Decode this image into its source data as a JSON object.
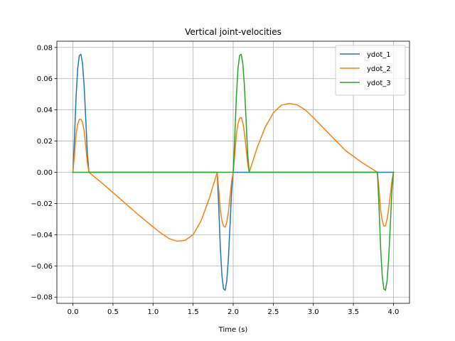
{
  "chart_data": {
    "type": "line",
    "title": "Vertical joint-velocities",
    "xlabel": "Time (s)",
    "ylabel": "",
    "xlim": [
      -0.2,
      4.2
    ],
    "ylim": [
      -0.084,
      0.084
    ],
    "xticks": [
      0.0,
      0.5,
      1.0,
      1.5,
      2.0,
      2.5,
      3.0,
      3.5,
      4.0
    ],
    "xtick_labels": [
      "0.0",
      "0.5",
      "1.0",
      "1.5",
      "2.0",
      "2.5",
      "3.0",
      "3.5",
      "4.0"
    ],
    "yticks": [
      0.08,
      0.06,
      0.04,
      0.02,
      0.0,
      -0.02,
      -0.04,
      -0.06,
      -0.08
    ],
    "ytick_labels": [
      "0.08",
      "0.06",
      "0.04",
      "0.02",
      "0.00",
      "−0.02",
      "−0.04",
      "−0.06",
      "−0.08"
    ],
    "grid": true,
    "legend_position": "top-right",
    "series": [
      {
        "name": "ydot_1",
        "color": "#1f77b4",
        "points": [
          [
            0.0,
            0.0
          ],
          [
            0.02,
            0.0226
          ],
          [
            0.04,
            0.0487
          ],
          [
            0.06,
            0.0665
          ],
          [
            0.08,
            0.0748
          ],
          [
            0.1,
            0.0756
          ],
          [
            0.12,
            0.0697
          ],
          [
            0.14,
            0.0555
          ],
          [
            0.16,
            0.0346
          ],
          [
            0.18,
            0.0124
          ],
          [
            0.2,
            0.0
          ],
          [
            1.8,
            0.0
          ],
          [
            1.82,
            -0.0226
          ],
          [
            1.84,
            -0.0487
          ],
          [
            1.86,
            -0.0665
          ],
          [
            1.88,
            -0.0748
          ],
          [
            1.9,
            -0.0756
          ],
          [
            1.92,
            -0.0697
          ],
          [
            1.94,
            -0.0555
          ],
          [
            1.96,
            -0.0346
          ],
          [
            1.98,
            -0.0124
          ],
          [
            2.0,
            0.0
          ],
          [
            4.0,
            0.0
          ]
        ]
      },
      {
        "name": "ydot_2",
        "color": "#ff7f0e",
        "points": [
          [
            0.0,
            0.0
          ],
          [
            0.02,
            0.0113
          ],
          [
            0.04,
            0.0244
          ],
          [
            0.06,
            0.031
          ],
          [
            0.08,
            0.0338
          ],
          [
            0.1,
            0.034
          ],
          [
            0.12,
            0.032
          ],
          [
            0.14,
            0.0265
          ],
          [
            0.16,
            0.017
          ],
          [
            0.18,
            0.006
          ],
          [
            0.2,
            0.0
          ],
          [
            0.4,
            -0.0085
          ],
          [
            0.6,
            -0.0175
          ],
          [
            0.8,
            -0.0265
          ],
          [
            1.0,
            -0.035
          ],
          [
            1.1,
            -0.039
          ],
          [
            1.2,
            -0.0425
          ],
          [
            1.3,
            -0.0442
          ],
          [
            1.4,
            -0.0436
          ],
          [
            1.5,
            -0.04
          ],
          [
            1.6,
            -0.031
          ],
          [
            1.7,
            -0.017
          ],
          [
            1.8,
            0.0
          ],
          [
            1.82,
            -0.0113
          ],
          [
            1.84,
            -0.0244
          ],
          [
            1.86,
            -0.031
          ],
          [
            1.88,
            -0.0345
          ],
          [
            1.9,
            -0.0352
          ],
          [
            1.92,
            -0.032
          ],
          [
            1.94,
            -0.0255
          ],
          [
            1.96,
            -0.016
          ],
          [
            1.98,
            -0.006
          ],
          [
            2.0,
            0.0
          ],
          [
            2.02,
            0.0113
          ],
          [
            2.04,
            0.0244
          ],
          [
            2.06,
            0.031
          ],
          [
            2.08,
            0.0345
          ],
          [
            2.1,
            0.0352
          ],
          [
            2.12,
            0.032
          ],
          [
            2.14,
            0.0255
          ],
          [
            2.16,
            0.016
          ],
          [
            2.18,
            0.006
          ],
          [
            2.2,
            0.0
          ],
          [
            2.3,
            0.016
          ],
          [
            2.4,
            0.029
          ],
          [
            2.5,
            0.038
          ],
          [
            2.6,
            0.043
          ],
          [
            2.7,
            0.0441
          ],
          [
            2.8,
            0.0432
          ],
          [
            2.9,
            0.04
          ],
          [
            3.0,
            0.035
          ],
          [
            3.2,
            0.0245
          ],
          [
            3.4,
            0.014
          ],
          [
            3.6,
            0.0065
          ],
          [
            3.8,
            0.0
          ],
          [
            3.82,
            -0.0113
          ],
          [
            3.84,
            -0.0244
          ],
          [
            3.86,
            -0.031
          ],
          [
            3.88,
            -0.0345
          ],
          [
            3.9,
            -0.0342
          ],
          [
            3.92,
            -0.03
          ],
          [
            3.94,
            -0.0235
          ],
          [
            3.96,
            -0.015
          ],
          [
            3.98,
            -0.0055
          ],
          [
            4.0,
            0.0
          ]
        ]
      },
      {
        "name": "ydot_3",
        "color": "#2ca02c",
        "points": [
          [
            0.0,
            0.0
          ],
          [
            2.0,
            0.0
          ],
          [
            2.02,
            0.0226
          ],
          [
            2.04,
            0.0487
          ],
          [
            2.06,
            0.0665
          ],
          [
            2.08,
            0.0748
          ],
          [
            2.1,
            0.0756
          ],
          [
            2.12,
            0.0697
          ],
          [
            2.14,
            0.0555
          ],
          [
            2.16,
            0.0346
          ],
          [
            2.18,
            0.0124
          ],
          [
            2.2,
            0.0
          ],
          [
            3.8,
            0.0
          ],
          [
            3.82,
            -0.0226
          ],
          [
            3.84,
            -0.0487
          ],
          [
            3.86,
            -0.0665
          ],
          [
            3.88,
            -0.0748
          ],
          [
            3.9,
            -0.0756
          ],
          [
            3.92,
            -0.0697
          ],
          [
            3.94,
            -0.0555
          ],
          [
            3.96,
            -0.0346
          ],
          [
            3.98,
            -0.0124
          ],
          [
            4.0,
            0.0
          ]
        ]
      }
    ]
  }
}
